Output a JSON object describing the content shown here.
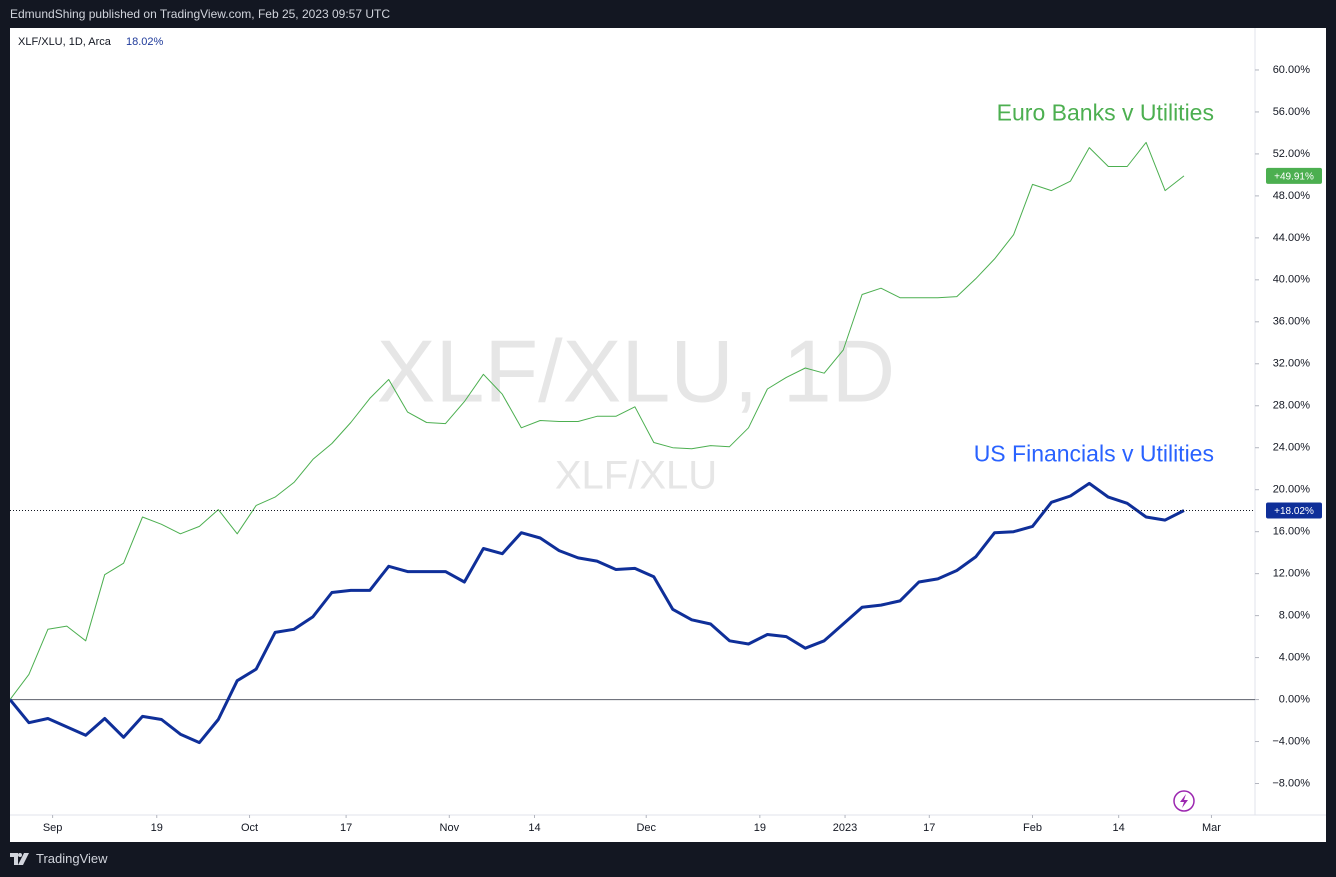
{
  "header": {
    "text": "EdmundShing published on TradingView.com, Feb 25, 2023 09:57 UTC"
  },
  "footer": {
    "brand": "TradingView"
  },
  "chart_data": {
    "type": "line",
    "symbol": "XLF/XLU, 1D, Arca",
    "symbol_value": "18.02%",
    "watermark": "XLF/XLU, 1D",
    "watermark_sub": "XLF/XLU",
    "x": [
      0,
      2,
      4,
      6,
      8,
      10,
      12,
      14,
      16,
      18,
      20,
      22,
      24,
      26,
      28,
      30,
      32,
      34,
      36,
      38,
      40,
      42,
      44,
      46,
      48,
      50,
      52,
      54,
      56,
      58,
      60,
      62,
      64,
      66,
      68,
      70,
      72,
      74,
      76,
      78,
      80,
      82,
      84,
      86,
      88,
      90,
      92,
      94,
      96,
      98,
      100,
      102,
      104,
      106,
      108,
      110,
      112,
      114,
      116,
      118,
      120,
      122,
      124
    ],
    "xlim": [
      0,
      131.5
    ],
    "xticks": [
      {
        "value": 4.5,
        "label": "Sep"
      },
      {
        "value": 15.5,
        "label": "19"
      },
      {
        "value": 25.3,
        "label": "Oct"
      },
      {
        "value": 35.5,
        "label": "17"
      },
      {
        "value": 46.4,
        "label": "Nov"
      },
      {
        "value": 55.4,
        "label": "14"
      },
      {
        "value": 67.2,
        "label": "Dec"
      },
      {
        "value": 79.2,
        "label": "19"
      },
      {
        "value": 88.2,
        "label": "2023"
      },
      {
        "value": 97.1,
        "label": "17"
      },
      {
        "value": 108,
        "label": "Feb"
      },
      {
        "value": 117.1,
        "label": "14"
      },
      {
        "value": 126.9,
        "label": "Mar"
      }
    ],
    "ylim": [
      -11.0,
      64.0
    ],
    "yticks": [
      {
        "value": -8,
        "label": "−8.00%"
      },
      {
        "value": -4,
        "label": "−4.00%"
      },
      {
        "value": 0,
        "label": "0.00%"
      },
      {
        "value": 4,
        "label": "4.00%"
      },
      {
        "value": 8,
        "label": "8.00%"
      },
      {
        "value": 12,
        "label": "12.00%"
      },
      {
        "value": 16,
        "label": "16.00%"
      },
      {
        "value": 20,
        "label": "20.00%"
      },
      {
        "value": 24,
        "label": "24.00%"
      },
      {
        "value": 28,
        "label": "28.00%"
      },
      {
        "value": 32,
        "label": "32.00%"
      },
      {
        "value": 36,
        "label": "36.00%"
      },
      {
        "value": 40,
        "label": "40.00%"
      },
      {
        "value": 44,
        "label": "44.00%"
      },
      {
        "value": 48,
        "label": "48.00%"
      },
      {
        "value": 52,
        "label": "52.00%"
      },
      {
        "value": 56,
        "label": "56.00%"
      },
      {
        "value": 60,
        "label": "60.00%"
      }
    ],
    "grid": false,
    "series": [
      {
        "name": "Euro Banks v Utilities",
        "color": "#4caf50",
        "width": 1,
        "values": [
          0,
          2.4,
          6.7,
          7.0,
          5.6,
          11.9,
          13.0,
          17.4,
          16.7,
          15.8,
          16.5,
          18.1,
          15.8,
          18.5,
          19.3,
          20.7,
          22.9,
          24.4,
          26.4,
          28.7,
          30.5,
          27.4,
          26.4,
          26.3,
          28.4,
          31.0,
          29.1,
          25.9,
          26.6,
          26.5,
          26.5,
          27.0,
          27.0,
          27.9,
          24.5,
          24.0,
          23.9,
          24.2,
          24.1,
          25.9,
          29.6,
          30.7,
          31.6,
          31.1,
          33.3,
          38.6,
          39.2,
          38.3,
          38.3,
          38.3,
          38.4,
          40.1,
          42.0,
          44.3,
          49.1,
          48.5,
          49.4,
          52.6,
          50.8,
          50.8,
          53.1,
          48.5,
          49.91
        ],
        "value_labels": [
          null,
          null,
          null,
          null,
          null,
          null,
          null,
          null,
          null,
          null,
          null,
          null,
          null,
          null,
          null,
          null,
          null,
          null,
          null,
          null,
          null,
          null,
          null,
          null,
          null,
          null,
          null,
          null,
          null,
          null,
          null,
          null,
          null,
          null,
          null,
          null,
          null,
          null,
          null,
          null,
          null,
          null,
          null,
          null,
          null,
          null,
          null,
          null,
          null,
          null,
          null,
          null,
          null,
          null,
          null,
          null,
          null,
          null,
          null,
          null,
          null,
          null,
          "+49.91%"
        ]
      },
      {
        "name": "US Financials v Utilities",
        "color": "#0f2f99",
        "label_color": "#2962ff",
        "width": 3,
        "values": [
          0,
          -2.2,
          -1.8,
          -2.6,
          -3.4,
          -1.8,
          -3.6,
          -1.6,
          -1.9,
          -3.3,
          -4.1,
          -1.9,
          1.8,
          2.9,
          6.4,
          6.7,
          7.9,
          10.2,
          10.4,
          10.4,
          12.7,
          12.2,
          12.2,
          12.2,
          11.2,
          14.4,
          13.9,
          15.9,
          15.4,
          14.2,
          13.5,
          13.2,
          12.4,
          12.5,
          11.7,
          8.6,
          7.6,
          7.2,
          5.6,
          5.3,
          6.2,
          6.0,
          4.9,
          5.6,
          7.2,
          8.8,
          9.0,
          9.4,
          11.2,
          11.5,
          12.3,
          13.6,
          15.9,
          16.0,
          16.5,
          18.8,
          19.4,
          20.6,
          19.3,
          18.7,
          17.4,
          17.1,
          18.02
        ],
        "value_labels": [
          null,
          null,
          null,
          null,
          null,
          null,
          null,
          null,
          null,
          null,
          null,
          null,
          null,
          null,
          null,
          null,
          null,
          null,
          null,
          null,
          null,
          null,
          null,
          null,
          null,
          null,
          null,
          null,
          null,
          null,
          null,
          null,
          null,
          null,
          null,
          null,
          null,
          null,
          null,
          null,
          null,
          null,
          null,
          null,
          null,
          null,
          null,
          null,
          null,
          null,
          null,
          null,
          null,
          null,
          null,
          null,
          null,
          null,
          null,
          null,
          null,
          null,
          "+18.02%"
        ]
      }
    ]
  }
}
